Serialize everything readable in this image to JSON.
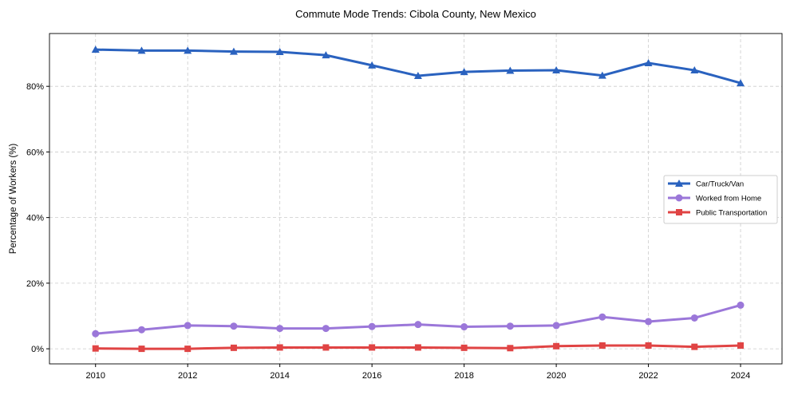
{
  "chart_data": {
    "type": "line",
    "title": "Commute Mode Trends: Cibola County, New Mexico",
    "xlabel": "",
    "ylabel": "Percentage of Workers (%)",
    "x": [
      2010,
      2011,
      2012,
      2013,
      2014,
      2015,
      2016,
      2017,
      2018,
      2019,
      2020,
      2021,
      2022,
      2023,
      2024
    ],
    "xticks": [
      2010,
      2012,
      2014,
      2016,
      2018,
      2020,
      2022,
      2024
    ],
    "xtick_labels": [
      "2010",
      "2012",
      "2014",
      "2016",
      "2018",
      "2020",
      "2022",
      "2024"
    ],
    "yticks": [
      0,
      20,
      40,
      60,
      80
    ],
    "ytick_labels": [
      "0%",
      "20%",
      "40%",
      "60%",
      "80%"
    ],
    "xlim": [
      2009.0,
      2024.9
    ],
    "ylim": [
      -4.6,
      96.1
    ],
    "grid": true,
    "legend_position": "center-right",
    "series": [
      {
        "name": "Car/Truck/Van",
        "color": "#2a62bf",
        "marker": "triangle",
        "values": [
          91.2,
          90.9,
          90.9,
          90.6,
          90.5,
          89.5,
          86.4,
          83.2,
          84.4,
          84.8,
          84.9,
          83.3,
          87.1,
          84.9,
          81.0
        ]
      },
      {
        "name": "Worked from Home",
        "color": "#9b77d9",
        "marker": "circle",
        "values": [
          4.6,
          5.8,
          7.1,
          6.9,
          6.2,
          6.2,
          6.8,
          7.4,
          6.7,
          6.9,
          7.1,
          9.7,
          8.3,
          9.4,
          13.3
        ]
      },
      {
        "name": "Public Transportation",
        "color": "#e04444",
        "marker": "square",
        "values": [
          0.1,
          0.0,
          0.0,
          0.3,
          0.4,
          0.4,
          0.4,
          0.4,
          0.3,
          0.2,
          0.8,
          1.0,
          1.0,
          0.6,
          1.0
        ]
      }
    ]
  }
}
